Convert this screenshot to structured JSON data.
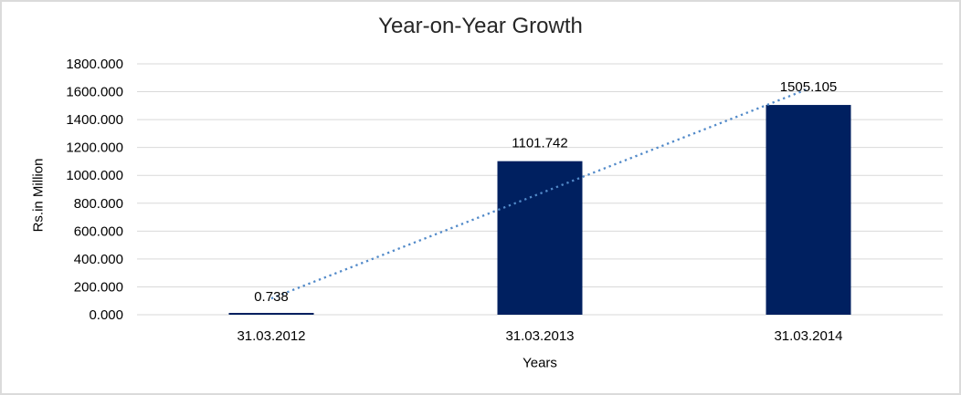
{
  "window": {
    "background_color": "#FFFFFF",
    "border_color": "#DBDBDB"
  },
  "chart_data": {
    "type": "bar",
    "title": "Year-on-Year Growth",
    "xlabel": "Years",
    "ylabel": "Rs.in Million",
    "categories": [
      "31.03.2012",
      "31.03.2013",
      "31.03.2014"
    ],
    "values": [
      0.738,
      1101.742,
      1505.105
    ],
    "data_labels": [
      "0.738",
      "1101.742",
      "1505.105"
    ],
    "ylim": [
      0,
      1800
    ],
    "y_tick_step": 200,
    "y_tick_labels": [
      "0.000",
      "200.000",
      "400.000",
      "600.000",
      "800.000",
      "1000.000",
      "1200.000",
      "1400.000",
      "1600.000",
      "1800.000"
    ],
    "grid": true,
    "legend": false,
    "bar_color": "#002060",
    "gridline_color": "#D9D9D9",
    "text_color": "#000000",
    "trendline": {
      "type": "linear",
      "style": "dotted",
      "color": "#528AC9"
    }
  }
}
